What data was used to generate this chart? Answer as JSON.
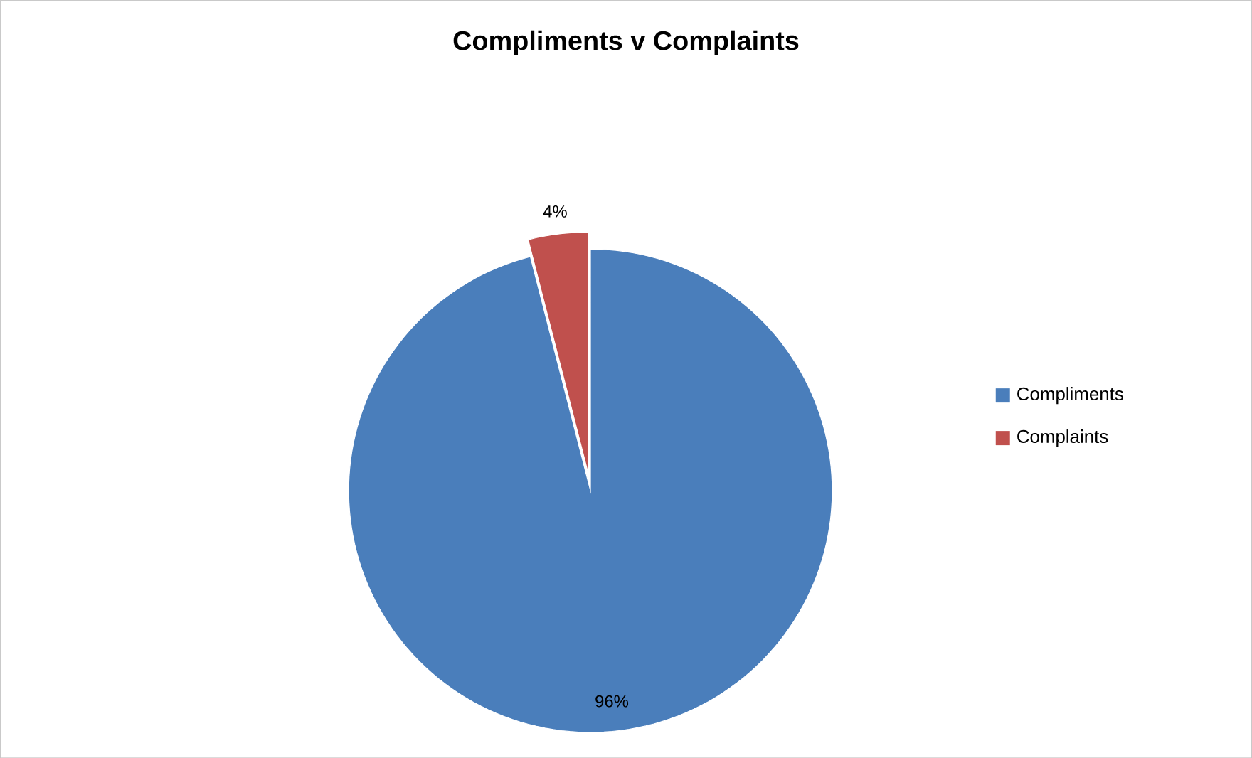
{
  "chart_data": {
    "type": "pie",
    "title": "Compliments v Complaints",
    "categories": [
      "Compliments",
      "Complaints"
    ],
    "values": [
      96,
      4
    ],
    "value_labels": [
      "96%",
      "4%"
    ],
    "colors": [
      "#4a7ebb",
      "#c0504d"
    ],
    "legend": "right"
  }
}
